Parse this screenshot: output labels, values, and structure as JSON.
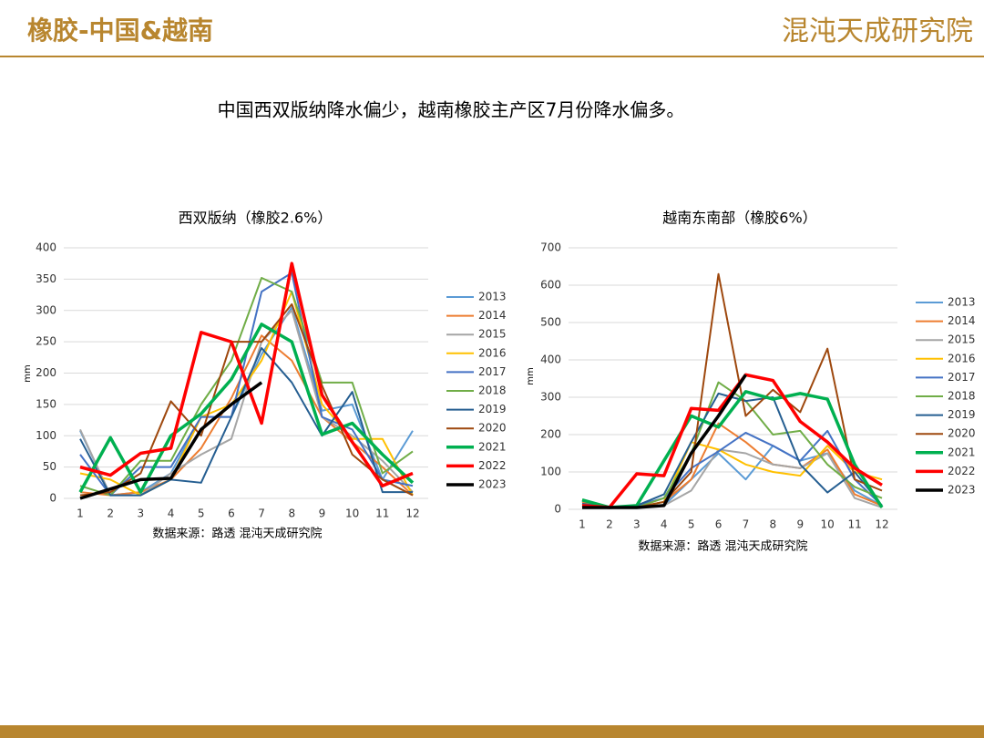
{
  "header": {
    "title": "橡胶-中国&越南",
    "logo": "混沌天成研究院"
  },
  "subtitle": "中国西双版纳降水偏少，越南橡胶主产区7月份降水偏多。",
  "chart_data": [
    {
      "type": "line",
      "title": "西双版纳（橡胶2.6%）",
      "y_label": "mm",
      "source": "数据来源：路透 混沌天成研究院",
      "categories": [
        "1",
        "2",
        "3",
        "4",
        "5",
        "6",
        "7",
        "8",
        "9",
        "10",
        "11",
        "12"
      ],
      "ylim": [
        0,
        400
      ],
      "yticks": [
        0,
        50,
        100,
        150,
        200,
        250,
        300,
        350,
        400
      ],
      "grid": true,
      "legend": "right",
      "series": [
        {
          "name": "2013",
          "color": "#5b9bd5",
          "line_width": 2,
          "values": [
            108,
            5,
            10,
            40,
            130,
            130,
            230,
            305,
            140,
            150,
            30,
            108
          ]
        },
        {
          "name": "2014",
          "color": "#ed7d31",
          "line_width": 2,
          "values": [
            10,
            5,
            10,
            30,
            80,
            160,
            260,
            220,
            130,
            90,
            50,
            5
          ]
        },
        {
          "name": "2015",
          "color": "#a5a5a5",
          "line_width": 2,
          "values": [
            110,
            5,
            5,
            40,
            70,
            95,
            250,
            300,
            130,
            100,
            60,
            10
          ]
        },
        {
          "name": "2016",
          "color": "#ffc000",
          "line_width": 2,
          "values": [
            40,
            30,
            5,
            30,
            130,
            150,
            220,
            330,
            150,
            95,
            95,
            5
          ]
        },
        {
          "name": "2017",
          "color": "#4472c4",
          "line_width": 2,
          "values": [
            70,
            5,
            50,
            50,
            130,
            130,
            330,
            360,
            130,
            110,
            30,
            20
          ]
        },
        {
          "name": "2018",
          "color": "#70ad47",
          "line_width": 2,
          "values": [
            20,
            5,
            60,
            60,
            150,
            220,
            352,
            330,
            185,
            185,
            40,
            75
          ]
        },
        {
          "name": "2019",
          "color": "#255e91",
          "line_width": 2,
          "values": [
            95,
            5,
            5,
            30,
            25,
            130,
            240,
            185,
            100,
            170,
            10,
            10
          ]
        },
        {
          "name": "2020",
          "color": "#9e480e",
          "line_width": 2,
          "values": [
            5,
            10,
            40,
            155,
            100,
            250,
            250,
            310,
            180,
            70,
            30,
            5
          ]
        },
        {
          "name": "2021",
          "color": "#00b050",
          "line_width": 3.5,
          "values": [
            10,
            97,
            10,
            100,
            135,
            190,
            278,
            250,
            102,
            120,
            70,
            25
          ]
        },
        {
          "name": "2022",
          "color": "#ff0000",
          "line_width": 3.5,
          "values": [
            50,
            37,
            72,
            80,
            265,
            250,
            120,
            375,
            165,
            90,
            20,
            40
          ]
        },
        {
          "name": "2023",
          "color": "#000000",
          "line_width": 3.5,
          "values": [
            0,
            15,
            30,
            32,
            110,
            150,
            185,
            null,
            null,
            null,
            null,
            null
          ]
        }
      ]
    },
    {
      "type": "line",
      "title": "越南东南部（橡胶6%）",
      "y_label": "mm",
      "source": "数据来源：路透 混沌天成研究院",
      "categories": [
        "1",
        "2",
        "3",
        "4",
        "5",
        "6",
        "7",
        "8",
        "9",
        "10",
        "11",
        "12"
      ],
      "ylim": [
        0,
        700
      ],
      "yticks": [
        0,
        100,
        200,
        300,
        400,
        500,
        600,
        700
      ],
      "grid": true,
      "legend": "right",
      "series": [
        {
          "name": "2013",
          "color": "#5b9bd5",
          "line_width": 2,
          "values": [
            20,
            5,
            5,
            10,
            80,
            150,
            80,
            170,
            130,
            150,
            50,
            10
          ]
        },
        {
          "name": "2014",
          "color": "#ed7d31",
          "line_width": 2,
          "values": [
            20,
            5,
            5,
            20,
            80,
            230,
            180,
            120,
            110,
            160,
            40,
            10
          ]
        },
        {
          "name": "2015",
          "color": "#a5a5a5",
          "line_width": 2,
          "values": [
            15,
            5,
            5,
            10,
            50,
            160,
            150,
            120,
            110,
            150,
            30,
            5
          ]
        },
        {
          "name": "2016",
          "color": "#ffc000",
          "line_width": 2,
          "values": [
            15,
            5,
            5,
            20,
            180,
            160,
            120,
            100,
            90,
            170,
            100,
            80
          ]
        },
        {
          "name": "2017",
          "color": "#4472c4",
          "line_width": 2,
          "values": [
            10,
            5,
            10,
            30,
            110,
            155,
            205,
            170,
            130,
            210,
            80,
            10
          ]
        },
        {
          "name": "2018",
          "color": "#70ad47",
          "line_width": 2,
          "values": [
            25,
            5,
            5,
            30,
            150,
            340,
            290,
            200,
            210,
            120,
            60,
            30
          ]
        },
        {
          "name": "2019",
          "color": "#255e91",
          "line_width": 2,
          "values": [
            15,
            5,
            10,
            40,
            180,
            310,
            290,
            300,
            120,
            45,
            100,
            10
          ]
        },
        {
          "name": "2020",
          "color": "#9e480e",
          "line_width": 2,
          "values": [
            10,
            5,
            5,
            20,
            100,
            630,
            250,
            320,
            260,
            430,
            80,
            50
          ]
        },
        {
          "name": "2021",
          "color": "#00b050",
          "line_width": 3.5,
          "values": [
            25,
            5,
            10,
            130,
            250,
            220,
            315,
            295,
            310,
            295,
            120,
            5
          ]
        },
        {
          "name": "2022",
          "color": "#ff0000",
          "line_width": 3.5,
          "values": [
            10,
            5,
            95,
            90,
            270,
            265,
            360,
            345,
            235,
            180,
            110,
            65
          ]
        },
        {
          "name": "2023",
          "color": "#000000",
          "line_width": 3.5,
          "values": [
            5,
            5,
            5,
            10,
            150,
            250,
            360,
            null,
            null,
            null,
            null,
            null
          ]
        }
      ]
    }
  ]
}
